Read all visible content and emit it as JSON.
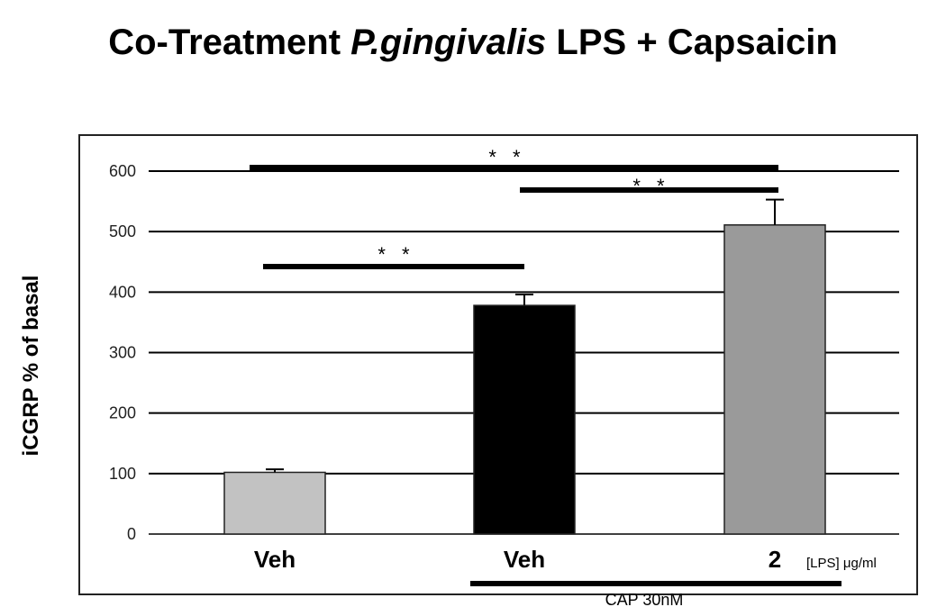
{
  "chart_data": {
    "type": "bar",
    "title_prefix": "Co-Treatment ",
    "title_italic": "P.gingivalis",
    "title_suffix": " LPS + Capsaicin",
    "ylabel": "iCGRP % of basal",
    "ylim": [
      0,
      600
    ],
    "yticks": [
      0,
      100,
      200,
      300,
      400,
      500,
      600
    ],
    "grid": true,
    "categories": [
      "Veh",
      "Veh",
      "2"
    ],
    "values": [
      102,
      378,
      511
    ],
    "errors": [
      5,
      18,
      42
    ],
    "bar_colors": [
      "#c2c2c2",
      "#000000",
      "#9a9a9a"
    ],
    "x_unit_label": "[LPS] μg/ml",
    "treatment_label": "CAP 30nM",
    "significance": [
      {
        "from": 0,
        "to": 1,
        "label": "* *"
      },
      {
        "from": 0,
        "to": 2,
        "label": "* *"
      },
      {
        "from": 1,
        "to": 2,
        "label": "* *"
      }
    ]
  }
}
